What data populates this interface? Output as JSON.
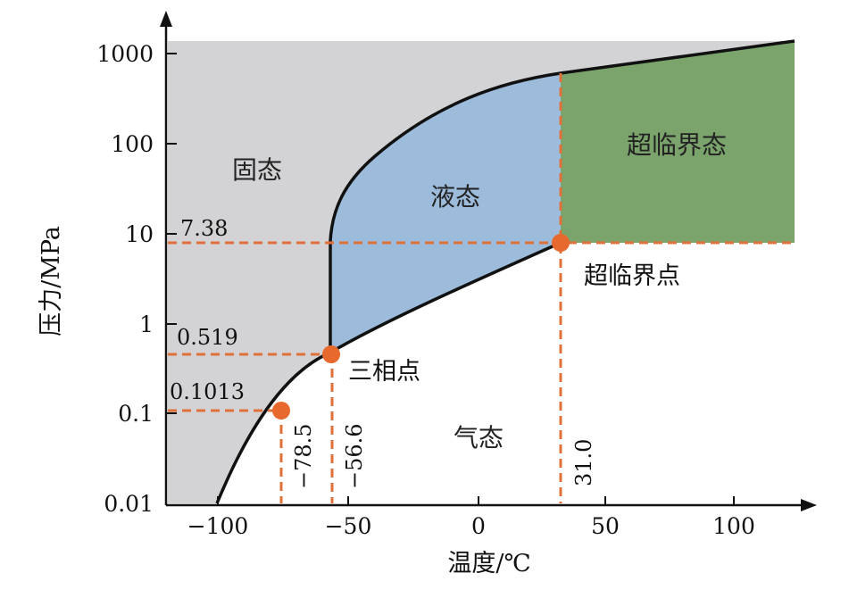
{
  "diagram": {
    "xlabel": "温度/℃",
    "ylabel": "压力/MPa",
    "x_ticks": [
      "−100",
      "−50",
      "0",
      "50",
      "100"
    ],
    "y_ticks": [
      "1000",
      "100",
      "10",
      "1",
      "0.1",
      "0.01"
    ],
    "regions": {
      "solid": "固态",
      "liquid": "液态",
      "gas": "气态",
      "supercritical": "超临界态"
    },
    "points": {
      "triple_label": "三相点",
      "critical_label": "超临界点"
    },
    "pressure_annotations": [
      "7.38",
      "0.519",
      "0.1013"
    ],
    "temperature_annotations": [
      "−78.5",
      "−56.6",
      "31.0"
    ],
    "colors": {
      "solid": "#D3D3D5",
      "liquid": "#9DBCDC",
      "supercritical": "#7BA46C",
      "guide": "#E0703A",
      "point": "#E8692E"
    }
  }
}
